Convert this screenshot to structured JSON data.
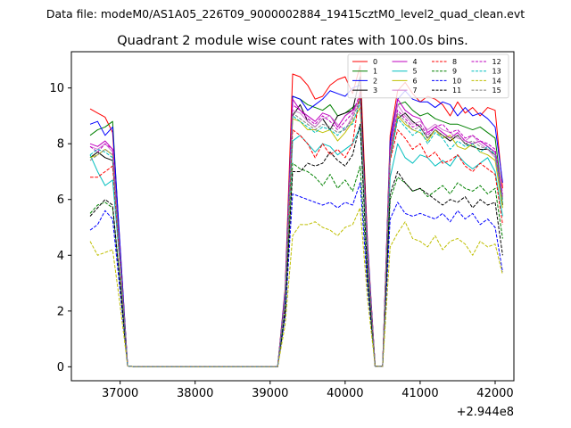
{
  "figure": {
    "suptitle": "Data file: modeM0/AS1A05_226T09_9000002884_19415cztM0_level2_quad_clean.evt",
    "title": "Quadrant 2 module wise count rates with 100.0s bins.",
    "x_offset_label": "+2.944e8"
  },
  "chart_data": {
    "type": "line",
    "title": "Quadrant 2 module wise count rates with 100.0s bins.",
    "xlabel": "",
    "ylabel": "",
    "x_offset": 294400000,
    "xlim": [
      36350,
      42250
    ],
    "ylim": [
      -0.5,
      11.3
    ],
    "xticks": [
      37000,
      38000,
      39000,
      40000,
      41000,
      42000
    ],
    "xtick_labels": [
      "37000",
      "38000",
      "39000",
      "40000",
      "41000",
      "42000"
    ],
    "yticks": [
      0,
      2,
      4,
      6,
      8,
      10
    ],
    "ytick_labels": [
      "0",
      "2",
      "4",
      "6",
      "8",
      "10"
    ],
    "grid": false,
    "legend_position": "top-right",
    "legend_columns": 4,
    "x": [
      36600,
      36700,
      36800,
      36900,
      37000,
      37100,
      37200,
      37300,
      37400,
      37500,
      37600,
      37700,
      37800,
      37900,
      38000,
      38100,
      38200,
      38300,
      38400,
      38500,
      38600,
      38700,
      38800,
      38900,
      39000,
      39100,
      39200,
      39300,
      39400,
      39500,
      39600,
      39700,
      39800,
      39900,
      40000,
      40100,
      40200,
      40300,
      40400,
      40500,
      40600,
      40700,
      40800,
      40900,
      41000,
      41100,
      41200,
      41300,
      41400,
      41500,
      41600,
      41700,
      41800,
      41900,
      42000,
      42100
    ],
    "series": [
      {
        "name": "0",
        "color": "#ff0000",
        "dash": "solid",
        "values": [
          9.25,
          9.1,
          8.95,
          8.4,
          4.3,
          0.03,
          0,
          0,
          0,
          0,
          0,
          0,
          0,
          0,
          0,
          0,
          0,
          0,
          0,
          0,
          0,
          0,
          0,
          0,
          0,
          0,
          2.8,
          10.5,
          10.4,
          10.1,
          9.6,
          9.7,
          10.1,
          10.3,
          10.4,
          9.8,
          10.8,
          4.4,
          0.02,
          0.02,
          8.3,
          9.9,
          10.2,
          9.8,
          9.5,
          9.7,
          9.6,
          9.4,
          9.0,
          9.5,
          9.1,
          9.3,
          9.0,
          9.3,
          9.2,
          6.4
        ]
      },
      {
        "name": "1",
        "color": "#008000",
        "dash": "solid",
        "values": [
          8.3,
          8.5,
          8.6,
          8.8,
          4.1,
          0.03,
          0,
          0,
          0,
          0,
          0,
          0,
          0,
          0,
          0,
          0,
          0,
          0,
          0,
          0,
          0,
          0,
          0,
          0,
          0,
          0,
          2.6,
          9.7,
          9.6,
          9.4,
          9.3,
          9.2,
          9.4,
          9.0,
          9.1,
          9.3,
          9.5,
          4.2,
          0.02,
          0.02,
          7.9,
          9.4,
          9.5,
          9.2,
          9.0,
          9.1,
          8.9,
          8.8,
          8.7,
          8.7,
          8.6,
          8.5,
          8.6,
          8.4,
          8.2,
          6.0
        ]
      },
      {
        "name": "2",
        "color": "#0000ff",
        "dash": "solid",
        "values": [
          8.7,
          8.8,
          8.3,
          8.6,
          4.3,
          0.03,
          0,
          0,
          0,
          0,
          0,
          0,
          0,
          0,
          0,
          0,
          0,
          0,
          0,
          0,
          0,
          0,
          0,
          0,
          0,
          0,
          2.7,
          9.7,
          9.6,
          9.2,
          9.4,
          9.6,
          9.9,
          9.8,
          9.7,
          10.0,
          10.1,
          4.3,
          0.02,
          0.02,
          8.1,
          9.6,
          9.9,
          9.6,
          9.5,
          9.5,
          9.3,
          9.5,
          9.4,
          9.0,
          9.3,
          9.0,
          9.1,
          8.9,
          8.6,
          6.6
        ]
      },
      {
        "name": "3",
        "color": "#000000",
        "dash": "solid",
        "values": [
          7.5,
          7.7,
          7.5,
          7.4,
          3.9,
          0.03,
          0,
          0,
          0,
          0,
          0,
          0,
          0,
          0,
          0,
          0,
          0,
          0,
          0,
          0,
          0,
          0,
          0,
          0,
          0,
          0,
          2.5,
          9.0,
          9.4,
          8.8,
          8.6,
          8.9,
          8.5,
          9.0,
          9.1,
          9.2,
          10.4,
          4.0,
          0.02,
          0.02,
          7.5,
          8.9,
          9.1,
          8.8,
          8.6,
          8.2,
          8.5,
          8.3,
          8.1,
          8.3,
          8.0,
          7.9,
          7.8,
          7.8,
          7.6,
          5.8
        ]
      },
      {
        "name": "4",
        "color": "#bf00bf",
        "dash": "solid",
        "values": [
          8.0,
          7.9,
          8.1,
          7.8,
          3.9,
          0.03,
          0,
          0,
          0,
          0,
          0,
          0,
          0,
          0,
          0,
          0,
          0,
          0,
          0,
          0,
          0,
          0,
          0,
          0,
          0,
          0,
          2.5,
          9.6,
          9.2,
          9.0,
          8.8,
          9.1,
          9.0,
          8.6,
          9.0,
          9.2,
          9.6,
          4.0,
          0.02,
          0.02,
          7.8,
          9.6,
          9.2,
          9.0,
          8.9,
          8.4,
          8.6,
          8.4,
          8.2,
          8.4,
          8.1,
          8.0,
          8.1,
          7.9,
          7.7,
          6.1
        ]
      },
      {
        "name": "5",
        "color": "#00bfbf",
        "dash": "solid",
        "values": [
          7.6,
          7.0,
          6.5,
          6.7,
          3.6,
          0.03,
          0,
          0,
          0,
          0,
          0,
          0,
          0,
          0,
          0,
          0,
          0,
          0,
          0,
          0,
          0,
          0,
          0,
          0,
          0,
          0,
          2.4,
          8.1,
          8.3,
          8.0,
          7.7,
          8.0,
          7.9,
          7.6,
          7.8,
          8.0,
          8.6,
          3.7,
          0.02,
          0.02,
          6.8,
          8.0,
          7.5,
          7.3,
          7.6,
          7.5,
          7.2,
          7.4,
          7.2,
          7.6,
          7.3,
          7.1,
          7.3,
          7.5,
          7.0,
          5.4
        ]
      },
      {
        "name": "6",
        "color": "#bfbf00",
        "dash": "solid",
        "values": [
          7.5,
          7.6,
          7.8,
          7.6,
          3.8,
          0.03,
          0,
          0,
          0,
          0,
          0,
          0,
          0,
          0,
          0,
          0,
          0,
          0,
          0,
          0,
          0,
          0,
          0,
          0,
          0,
          0,
          2.5,
          8.9,
          8.8,
          8.5,
          8.5,
          8.4,
          8.5,
          8.1,
          8.4,
          8.8,
          9.3,
          3.9,
          0.02,
          0.02,
          7.6,
          9.0,
          8.7,
          8.5,
          8.4,
          8.1,
          8.5,
          8.2,
          8.3,
          7.9,
          7.8,
          8.0,
          7.7,
          7.6,
          7.4,
          5.7
        ]
      },
      {
        "name": "7",
        "color": "#d080d0",
        "dash": "solid",
        "values": [
          7.9,
          7.8,
          8.0,
          7.7,
          3.8,
          0.03,
          0,
          0,
          0,
          0,
          0,
          0,
          0,
          0,
          0,
          0,
          0,
          0,
          0,
          0,
          0,
          0,
          0,
          0,
          0,
          0,
          2.5,
          9.2,
          9.1,
          8.8,
          8.6,
          8.9,
          9.0,
          8.7,
          8.5,
          9.0,
          9.7,
          4.0,
          0.02,
          0.02,
          7.7,
          9.4,
          9.0,
          8.7,
          8.8,
          8.5,
          8.7,
          8.5,
          8.4,
          8.2,
          8.1,
          8.3,
          8.0,
          7.8,
          7.5,
          6.0
        ]
      },
      {
        "name": "8",
        "color": "#ff0000",
        "dash": "dashed",
        "values": [
          6.8,
          6.8,
          7.0,
          7.2,
          3.6,
          0.03,
          0,
          0,
          0,
          0,
          0,
          0,
          0,
          0,
          0,
          0,
          0,
          0,
          0,
          0,
          0,
          0,
          0,
          0,
          0,
          0,
          2.2,
          8.5,
          8.3,
          8.0,
          7.5,
          8.0,
          7.6,
          7.8,
          7.5,
          8.0,
          9.9,
          3.8,
          0.02,
          0.02,
          7.4,
          8.5,
          8.2,
          7.8,
          8.0,
          7.5,
          7.7,
          7.3,
          7.4,
          7.6,
          7.2,
          7.0,
          7.3,
          7.1,
          6.9,
          5.1
        ]
      },
      {
        "name": "9",
        "color": "#008000",
        "dash": "dashed",
        "values": [
          5.5,
          5.8,
          5.9,
          5.7,
          3.0,
          0.03,
          0,
          0,
          0,
          0,
          0,
          0,
          0,
          0,
          0,
          0,
          0,
          0,
          0,
          0,
          0,
          0,
          0,
          0,
          0,
          0,
          1.9,
          7.3,
          7.1,
          7.0,
          6.8,
          6.5,
          6.9,
          6.4,
          6.7,
          6.3,
          7.2,
          3.1,
          0.02,
          0.02,
          6.0,
          6.8,
          6.6,
          6.3,
          6.4,
          6.1,
          6.3,
          6.5,
          6.2,
          6.6,
          6.4,
          6.3,
          6.5,
          6.2,
          6.4,
          4.6
        ]
      },
      {
        "name": "10",
        "color": "#0000ff",
        "dash": "dashed",
        "values": [
          4.9,
          5.1,
          5.6,
          5.3,
          2.7,
          0.03,
          0,
          0,
          0,
          0,
          0,
          0,
          0,
          0,
          0,
          0,
          0,
          0,
          0,
          0,
          0,
          0,
          0,
          0,
          0,
          0,
          1.8,
          6.2,
          6.1,
          6.0,
          5.9,
          5.8,
          5.9,
          5.7,
          5.9,
          5.8,
          6.6,
          2.8,
          0.02,
          0.02,
          5.3,
          5.9,
          5.5,
          5.4,
          5.5,
          5.4,
          5.3,
          5.5,
          5.2,
          5.6,
          5.3,
          5.5,
          5.1,
          5.3,
          5.0,
          3.4
        ]
      },
      {
        "name": "11",
        "color": "#000000",
        "dash": "dashed",
        "values": [
          5.4,
          5.7,
          6.0,
          5.8,
          3.0,
          0.03,
          0,
          0,
          0,
          0,
          0,
          0,
          0,
          0,
          0,
          0,
          0,
          0,
          0,
          0,
          0,
          0,
          0,
          0,
          0,
          0,
          2.0,
          7.0,
          7.0,
          7.3,
          7.2,
          7.3,
          7.7,
          7.4,
          7.2,
          7.6,
          8.7,
          3.2,
          0.02,
          0.02,
          6.2,
          7.0,
          6.6,
          6.3,
          6.4,
          6.2,
          6.0,
          5.8,
          6.0,
          5.9,
          6.1,
          5.7,
          6.0,
          5.8,
          5.9,
          4.0
        ]
      },
      {
        "name": "12",
        "color": "#bf00bf",
        "dash": "dashed",
        "values": [
          7.9,
          7.7,
          8.0,
          7.8,
          3.9,
          0.03,
          0,
          0,
          0,
          0,
          0,
          0,
          0,
          0,
          0,
          0,
          0,
          0,
          0,
          0,
          0,
          0,
          0,
          0,
          0,
          0,
          2.5,
          9.4,
          9.2,
          8.9,
          8.7,
          9.0,
          8.8,
          8.5,
          8.8,
          9.1,
          9.8,
          4.0,
          0.02,
          0.02,
          7.7,
          9.2,
          8.9,
          8.6,
          8.7,
          8.3,
          8.6,
          8.7,
          8.4,
          8.5,
          8.2,
          8.3,
          8.1,
          8.0,
          7.8,
          6.2
        ]
      },
      {
        "name": "13",
        "color": "#00bfbf",
        "dash": "dashed",
        "values": [
          7.6,
          7.8,
          7.7,
          7.5,
          3.8,
          0.03,
          0,
          0,
          0,
          0,
          0,
          0,
          0,
          0,
          0,
          0,
          0,
          0,
          0,
          0,
          0,
          0,
          0,
          0,
          0,
          0,
          2.4,
          9.0,
          8.8,
          8.6,
          8.4,
          8.6,
          8.5,
          8.3,
          8.6,
          8.7,
          9.5,
          3.9,
          0.02,
          0.02,
          7.5,
          8.9,
          8.6,
          8.3,
          8.5,
          8.0,
          8.4,
          8.2,
          7.8,
          8.1,
          7.9,
          8.0,
          7.7,
          7.9,
          7.6,
          5.9
        ]
      },
      {
        "name": "14",
        "color": "#bfbf00",
        "dash": "dashed",
        "values": [
          4.5,
          4.0,
          4.1,
          4.2,
          2.2,
          0.03,
          0,
          0,
          0,
          0,
          0,
          0,
          0,
          0,
          0,
          0,
          0,
          0,
          0,
          0,
          0,
          0,
          0,
          0,
          0,
          0,
          1.5,
          4.7,
          5.1,
          5.1,
          5.2,
          5.0,
          4.9,
          4.7,
          5.0,
          5.1,
          5.7,
          2.4,
          0.02,
          0.02,
          4.3,
          4.8,
          5.2,
          4.6,
          4.5,
          4.3,
          4.7,
          4.2,
          4.5,
          4.6,
          4.4,
          4.0,
          4.5,
          4.3,
          4.4,
          3.3
        ]
      },
      {
        "name": "15",
        "color": "#808080",
        "dash": "dashed",
        "values": [
          7.4,
          7.6,
          7.8,
          7.6,
          3.8,
          0.03,
          0,
          0,
          0,
          0,
          0,
          0,
          0,
          0,
          0,
          0,
          0,
          0,
          0,
          0,
          0,
          0,
          0,
          0,
          0,
          0,
          2.5,
          9.1,
          8.9,
          8.7,
          8.5,
          8.7,
          8.6,
          8.4,
          8.5,
          8.9,
          9.6,
          4.0,
          0.02,
          0.02,
          7.6,
          9.1,
          8.8,
          8.5,
          8.6,
          8.2,
          8.5,
          8.3,
          8.2,
          8.3,
          8.0,
          8.1,
          7.9,
          7.8,
          7.6,
          6.0
        ]
      }
    ]
  }
}
